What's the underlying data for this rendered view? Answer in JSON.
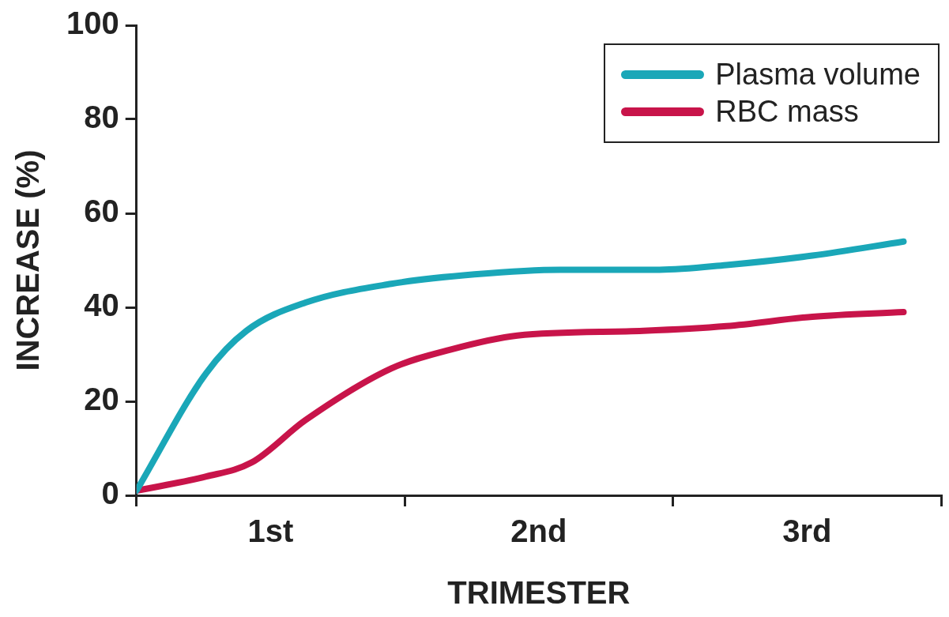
{
  "chart_data": {
    "type": "line",
    "xlabel": "TRIMESTER",
    "ylabel": "INCREASE (%)",
    "xlim": [
      0,
      3
    ],
    "xticks": [
      {
        "value": 0,
        "label": null
      },
      {
        "value": 0.5,
        "label": "1st"
      },
      {
        "value": 1,
        "label": null
      },
      {
        "value": 1.5,
        "label": "2nd"
      },
      {
        "value": 2,
        "label": null
      },
      {
        "value": 2.5,
        "label": "3rd"
      },
      {
        "value": 3,
        "label": null
      }
    ],
    "ylim": [
      0,
      100
    ],
    "yticks": [
      0,
      20,
      40,
      60,
      80,
      100
    ],
    "grid": false,
    "legend": "top right",
    "marker": "none",
    "line_style": "solid",
    "series": [
      {
        "name": "Plasma volume",
        "color": "#1aa7b8",
        "x": [
          0,
          0.26,
          0.41,
          0.63,
          0.95,
          1.26,
          1.58,
          1.95,
          2.2,
          2.52,
          2.86
        ],
        "values": [
          1,
          26,
          35,
          41,
          45,
          47,
          48,
          48,
          49,
          51,
          54
        ]
      },
      {
        "name": "RBC mass",
        "color": "#c8144a",
        "x": [
          0,
          0.26,
          0.43,
          0.63,
          0.95,
          1.17,
          1.42,
          1.89,
          2.2,
          2.52,
          2.86
        ],
        "values": [
          1,
          4,
          7,
          16,
          27,
          31,
          34,
          35,
          36,
          38,
          39
        ]
      }
    ]
  }
}
